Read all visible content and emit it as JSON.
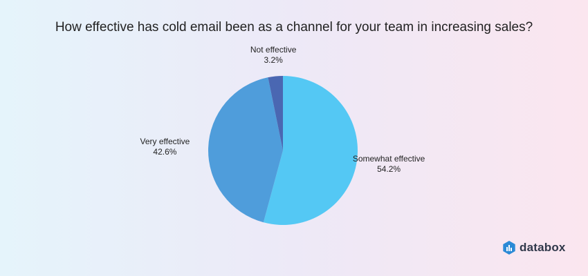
{
  "chart_data": {
    "type": "pie",
    "title": "How effective has cold email been as a channel for your team in increasing sales?",
    "slices": [
      {
        "label": "Somewhat effective",
        "value": 54.2,
        "display": "54.2%",
        "color": "#54c8f4"
      },
      {
        "label": "Very effective",
        "value": 42.6,
        "display": "42.6%",
        "color": "#4f9ddb"
      },
      {
        "label": "Not effective",
        "value": 3.2,
        "display": "3.2%",
        "color": "#4a67b2"
      }
    ],
    "start": "12 o'clock",
    "direction": "clockwise"
  },
  "brand": {
    "name": "databox"
  }
}
